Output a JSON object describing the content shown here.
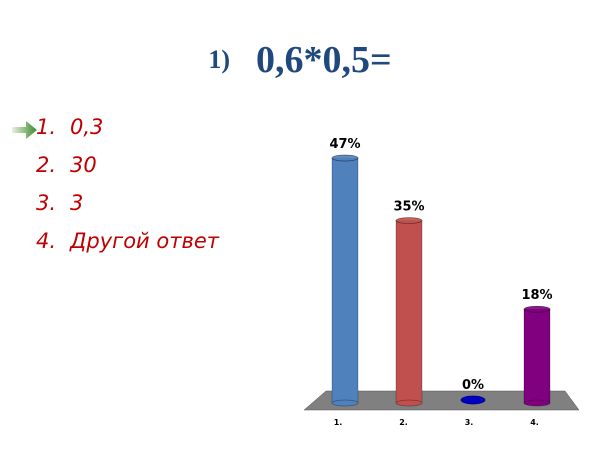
{
  "title": {
    "number": "1)",
    "expression": "0,6*0,5="
  },
  "answers": [
    {
      "n": "1.",
      "text": "0,3",
      "marked_correct": true
    },
    {
      "n": "2.",
      "text": "30"
    },
    {
      "n": "3.",
      "text": "3"
    },
    {
      "n": "4.",
      "text": "Другой ответ"
    }
  ],
  "icons": {
    "marker": "arrow-right-icon"
  },
  "chart_data": {
    "type": "bar",
    "style": "3d-cylinder",
    "categories": [
      "1.",
      "2.",
      "3.",
      "4."
    ],
    "values": [
      47,
      35,
      0,
      18
    ],
    "data_labels": [
      "47%",
      "35%",
      "0%",
      "18%"
    ],
    "colors": [
      "#4f81bd",
      "#c0504d",
      "#0000c0",
      "#800080"
    ],
    "ylim": [
      0,
      47
    ],
    "grid": false,
    "floor_color": "#808080",
    "title": "",
    "xlabel": "",
    "ylabel": ""
  }
}
